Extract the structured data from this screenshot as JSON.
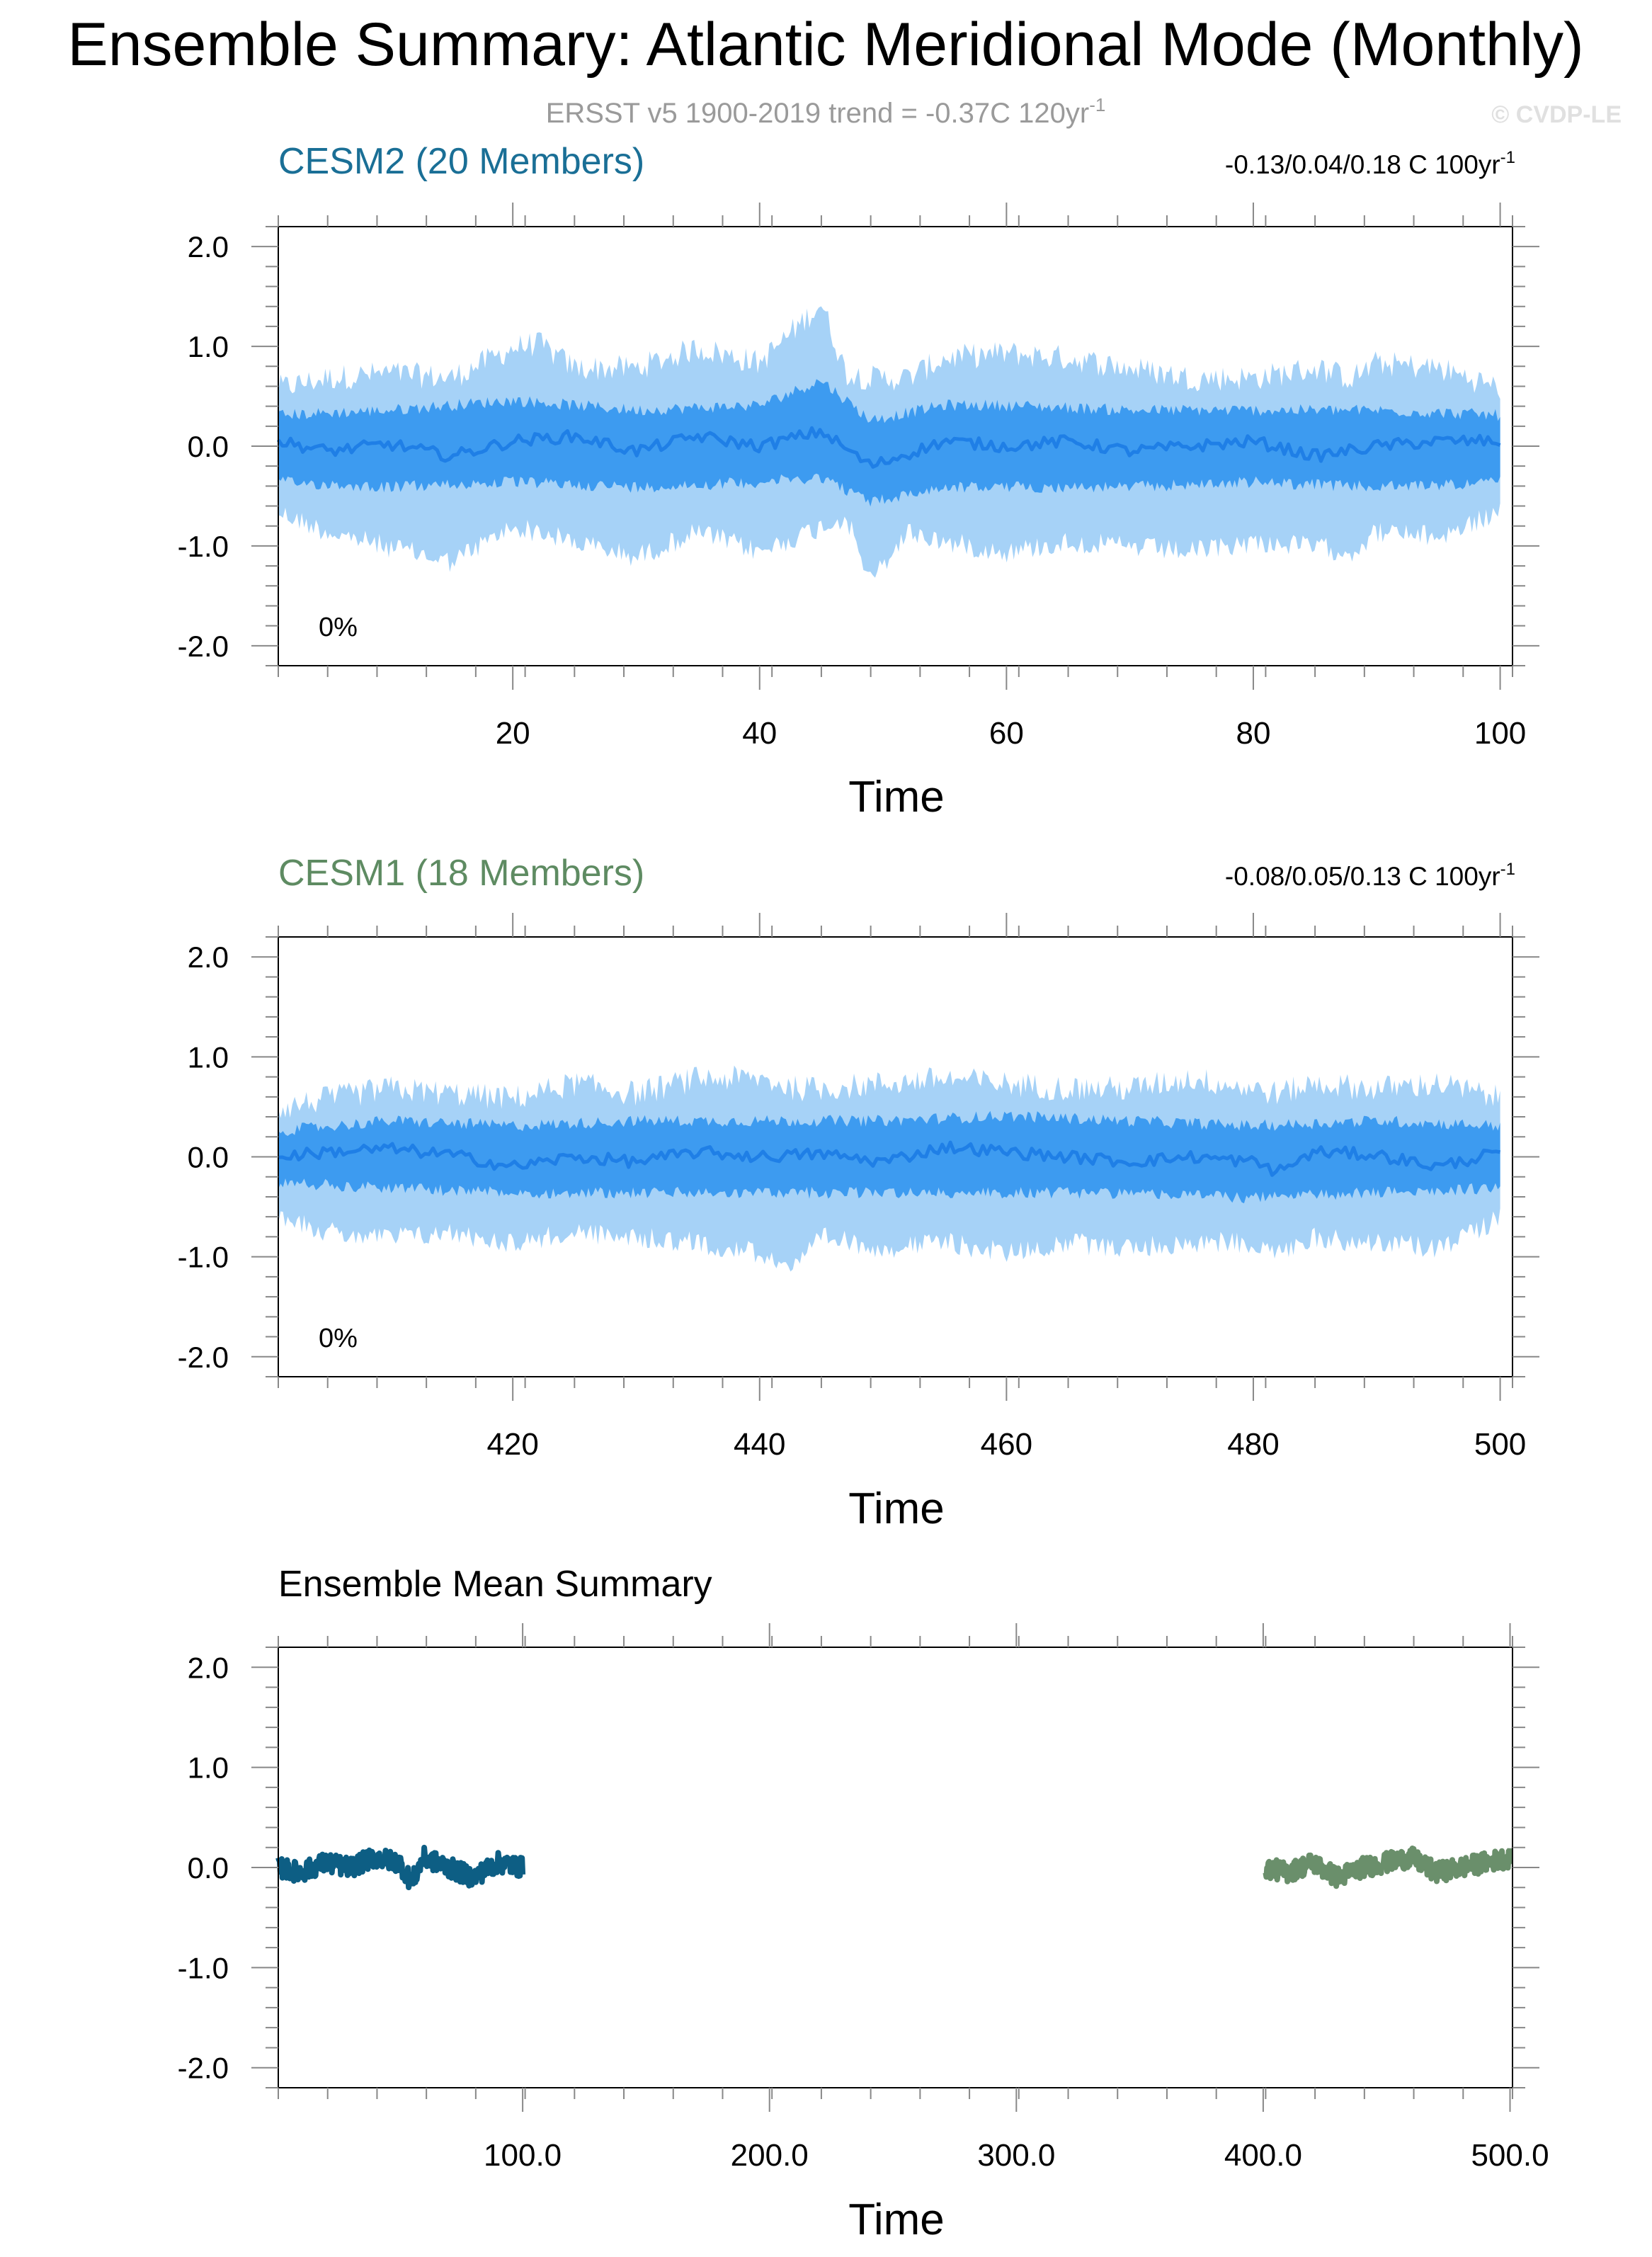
{
  "header": {
    "title": "Ensemble Summary: Atlantic Meridional Mode (Monthly)",
    "subtitle": "ERSST v5 1900-2019 trend = -0.37C 120yr",
    "subtitle_exp": "-1",
    "copyright": "© CVDP-LE"
  },
  "chart_data": [
    {
      "type": "area",
      "title": "CESM2 (20 Members)",
      "title_color": "#1a6f96",
      "trend_text": "-0.13/0.04/0.18 C 100yr",
      "trend_exp": "-1",
      "percent_label": "0%",
      "xlabel": "Time",
      "ylabel": "",
      "xlim": [
        1,
        101
      ],
      "ylim": [
        -2.2,
        2.2
      ],
      "x_ticks": [
        20,
        40,
        60,
        80,
        100
      ],
      "x_tick_labels": [
        "20",
        "40",
        "60",
        "80",
        "100"
      ],
      "y_ticks": [
        -2,
        -1,
        0,
        1,
        2
      ],
      "y_tick_labels": [
        "-2.0",
        "-1.0",
        "0.0",
        "1.0",
        "2.0"
      ],
      "series": [
        {
          "values_kind": "min_max_envelope",
          "color": "#a6d2f7",
          "env": [
            [
              1,
              -0.55,
              0.45
            ],
            [
              5,
              -0.75,
              0.55
            ],
            [
              10,
              -0.9,
              0.6
            ],
            [
              15,
              -1.05,
              0.55
            ],
            [
              20,
              -0.7,
              0.85
            ],
            [
              22,
              -0.75,
              0.9
            ],
            [
              25,
              -0.85,
              0.65
            ],
            [
              30,
              -1.0,
              0.65
            ],
            [
              35,
              -0.75,
              0.85
            ],
            [
              40,
              -0.95,
              0.7
            ],
            [
              45,
              -0.7,
              1.3
            ],
            [
              47,
              -0.6,
              0.6
            ],
            [
              49,
              -1.25,
              0.55
            ],
            [
              52,
              -0.75,
              0.55
            ],
            [
              55,
              -0.85,
              0.75
            ],
            [
              60,
              -0.95,
              0.8
            ],
            [
              65,
              -0.85,
              0.75
            ],
            [
              70,
              -0.9,
              0.65
            ],
            [
              75,
              -0.95,
              0.55
            ],
            [
              80,
              -0.85,
              0.55
            ],
            [
              85,
              -0.9,
              0.65
            ],
            [
              88,
              -0.95,
              0.55
            ],
            [
              90,
              -0.75,
              0.7
            ],
            [
              95,
              -0.8,
              0.65
            ],
            [
              100,
              -0.55,
              0.45
            ]
          ]
        },
        {
          "values_kind": "interquartile_envelope",
          "color": "#3d9bf0",
          "env": [
            [
              1,
              -0.3,
              0.25
            ],
            [
              10,
              -0.35,
              0.3
            ],
            [
              20,
              -0.3,
              0.4
            ],
            [
              30,
              -0.35,
              0.3
            ],
            [
              40,
              -0.3,
              0.35
            ],
            [
              45,
              -0.25,
              0.6
            ],
            [
              49,
              -0.5,
              0.2
            ],
            [
              55,
              -0.35,
              0.35
            ],
            [
              60,
              -0.35,
              0.35
            ],
            [
              70,
              -0.35,
              0.3
            ],
            [
              80,
              -0.3,
              0.3
            ],
            [
              90,
              -0.35,
              0.3
            ],
            [
              100,
              -0.3,
              0.25
            ]
          ]
        },
        {
          "values_kind": "ensemble_mean",
          "color": "#1f7fe6",
          "x": [
            1,
            5,
            10,
            15,
            20,
            25,
            30,
            35,
            40,
            45,
            49,
            55,
            60,
            65,
            70,
            75,
            80,
            85,
            90,
            95,
            100
          ],
          "values": [
            0.05,
            -0.05,
            0.02,
            -0.1,
            0.05,
            0.1,
            -0.05,
            0.1,
            0.0,
            0.15,
            -0.2,
            0.05,
            0.0,
            0.05,
            -0.05,
            0.0,
            0.05,
            -0.1,
            0.0,
            0.05,
            0.05
          ]
        }
      ]
    },
    {
      "type": "area",
      "title": "CESM1 (18 Members)",
      "title_color": "#5e8b62",
      "trend_text": "-0.08/0.05/0.13 C 100yr",
      "trend_exp": "-1",
      "percent_label": "0%",
      "xlabel": "Time",
      "ylabel": "",
      "xlim": [
        401,
        501
      ],
      "ylim": [
        -2.2,
        2.2
      ],
      "x_ticks": [
        420,
        440,
        460,
        480,
        500
      ],
      "x_tick_labels": [
        "420",
        "440",
        "460",
        "480",
        "500"
      ],
      "y_ticks": [
        -2,
        -1,
        0,
        1,
        2
      ],
      "y_tick_labels": [
        "-2.0",
        "-1.0",
        "0.0",
        "1.0",
        "2.0"
      ],
      "series": [
        {
          "values_kind": "min_max_envelope",
          "color": "#a6d2f7",
          "env": [
            [
              401,
              -0.45,
              0.35
            ],
            [
              405,
              -0.65,
              0.45
            ],
            [
              410,
              -0.7,
              0.55
            ],
            [
              415,
              -0.65,
              0.5
            ],
            [
              420,
              -0.75,
              0.45
            ],
            [
              425,
              -0.65,
              0.6
            ],
            [
              430,
              -0.7,
              0.5
            ],
            [
              435,
              -0.75,
              0.65
            ],
            [
              440,
              -0.85,
              0.65
            ],
            [
              443,
              -1.0,
              0.55
            ],
            [
              445,
              -0.7,
              0.55
            ],
            [
              450,
              -0.8,
              0.6
            ],
            [
              455,
              -0.75,
              0.65
            ],
            [
              460,
              -0.85,
              0.6
            ],
            [
              465,
              -0.75,
              0.55
            ],
            [
              470,
              -0.8,
              0.55
            ],
            [
              475,
              -0.75,
              0.65
            ],
            [
              480,
              -0.75,
              0.55
            ],
            [
              482,
              -0.85,
              0.5
            ],
            [
              485,
              -0.7,
              0.6
            ],
            [
              490,
              -0.75,
              0.55
            ],
            [
              495,
              -0.8,
              0.6
            ],
            [
              500,
              -0.5,
              0.45
            ]
          ]
        },
        {
          "values_kind": "interquartile_envelope",
          "color": "#3d9bf0",
          "env": [
            [
              401,
              -0.2,
              0.2
            ],
            [
              410,
              -0.25,
              0.3
            ],
            [
              420,
              -0.3,
              0.25
            ],
            [
              430,
              -0.3,
              0.3
            ],
            [
              440,
              -0.3,
              0.3
            ],
            [
              450,
              -0.3,
              0.3
            ],
            [
              460,
              -0.3,
              0.35
            ],
            [
              470,
              -0.3,
              0.3
            ],
            [
              480,
              -0.35,
              0.25
            ],
            [
              490,
              -0.3,
              0.3
            ],
            [
              500,
              -0.25,
              0.25
            ]
          ]
        },
        {
          "values_kind": "ensemble_mean",
          "color": "#1f7fe6",
          "x": [
            401,
            405,
            410,
            415,
            420,
            425,
            430,
            435,
            440,
            445,
            450,
            455,
            460,
            465,
            470,
            475,
            480,
            482,
            485,
            490,
            495,
            500
          ],
          "values": [
            0.0,
            0.05,
            0.08,
            0.02,
            -0.1,
            0.0,
            -0.05,
            0.05,
            0.0,
            0.03,
            -0.05,
            0.1,
            0.05,
            0.0,
            -0.05,
            0.0,
            -0.05,
            -0.15,
            0.05,
            0.02,
            -0.1,
            0.05
          ]
        }
      ]
    },
    {
      "type": "line",
      "title": "Ensemble Mean Summary",
      "xlabel": "Time",
      "ylabel": "",
      "xlim": [
        1,
        501
      ],
      "ylim": [
        -2.2,
        2.2
      ],
      "x_ticks": [
        100,
        200,
        300,
        400,
        500
      ],
      "x_tick_labels": [
        "100.0",
        "200.0",
        "300.0",
        "400.0",
        "500.0"
      ],
      "y_ticks": [
        -2,
        -1,
        0,
        1,
        2
      ],
      "y_tick_labels": [
        "-2.0",
        "-1.0",
        "0.0",
        "1.0",
        "2.0"
      ],
      "series": [
        {
          "name": "CESM2 (20 Members)",
          "color": "#0d5e84",
          "x": [
            1,
            10,
            20,
            30,
            40,
            50,
            55,
            60,
            70,
            80,
            90,
            100
          ],
          "values": [
            0.0,
            -0.05,
            0.05,
            0.0,
            0.1,
            0.05,
            -0.15,
            0.1,
            0.0,
            -0.1,
            0.05,
            0.0
          ]
        },
        {
          "name": "CESM1 (18 Members)",
          "color": "#6a8f6b",
          "x": [
            401,
            410,
            420,
            430,
            440,
            450,
            460,
            470,
            480,
            490,
            500
          ],
          "values": [
            0.0,
            -0.05,
            0.05,
            -0.1,
            0.0,
            0.05,
            0.1,
            -0.05,
            0.0,
            0.05,
            0.1
          ]
        }
      ]
    }
  ]
}
